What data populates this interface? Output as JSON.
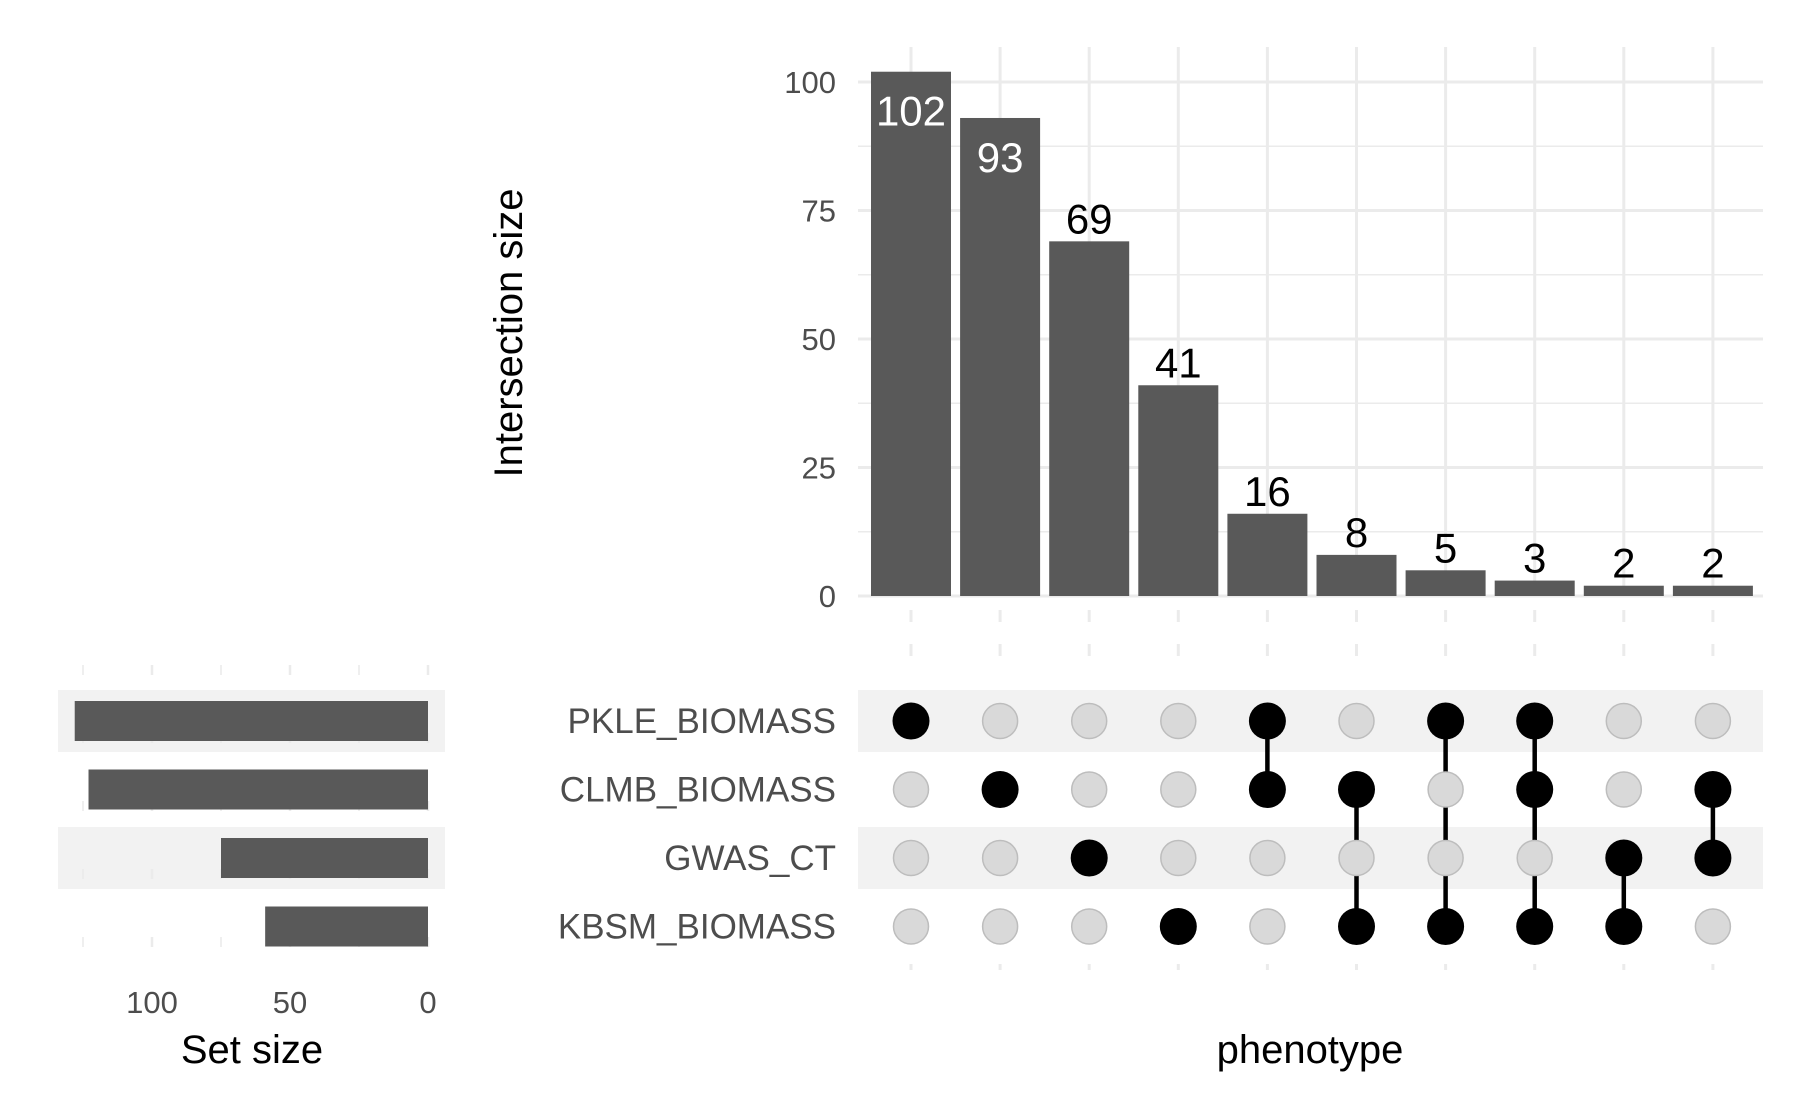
{
  "chart_data": {
    "type": "bar",
    "subtype": "upset",
    "colors": {
      "bar": "#595959",
      "dot_active": "#000000",
      "dot_inactive": "#d9d9d9",
      "dot_inactive_stroke": "#bdbdbd",
      "row_stripe": "#f2f2f2",
      "grid": "#ebebeb",
      "label_inside": "#ffffff",
      "label_outside": "#000000"
    },
    "intersection_size": {
      "ylabel": "Intersection size",
      "ylim": [
        0,
        105
      ],
      "yticks": [
        0,
        25,
        50,
        75,
        100
      ],
      "values": [
        102,
        93,
        69,
        41,
        16,
        8,
        5,
        3,
        2,
        2
      ],
      "labels": [
        "102",
        "93",
        "69",
        "41",
        "16",
        "8",
        "5",
        "3",
        "2",
        "2"
      ]
    },
    "matrix": {
      "xlabel": "phenotype",
      "sets": [
        "PKLE_BIOMASS",
        "CLMB_BIOMASS",
        "GWAS_CT",
        "KBSM_BIOMASS"
      ],
      "combinations": [
        [
          "PKLE_BIOMASS"
        ],
        [
          "CLMB_BIOMASS"
        ],
        [
          "GWAS_CT"
        ],
        [
          "KBSM_BIOMASS"
        ],
        [
          "PKLE_BIOMASS",
          "CLMB_BIOMASS"
        ],
        [
          "CLMB_BIOMASS",
          "KBSM_BIOMASS"
        ],
        [
          "PKLE_BIOMASS",
          "KBSM_BIOMASS"
        ],
        [
          "PKLE_BIOMASS",
          "CLMB_BIOMASS",
          "KBSM_BIOMASS"
        ],
        [
          "GWAS_CT",
          "KBSM_BIOMASS"
        ],
        [
          "CLMB_BIOMASS",
          "GWAS_CT"
        ]
      ]
    },
    "set_size": {
      "xlabel": "Set size",
      "xlim": [
        0,
        135
      ],
      "xticks": [
        100,
        50,
        0
      ],
      "values": [
        128,
        123,
        75,
        59
      ]
    },
    "grid": true
  }
}
